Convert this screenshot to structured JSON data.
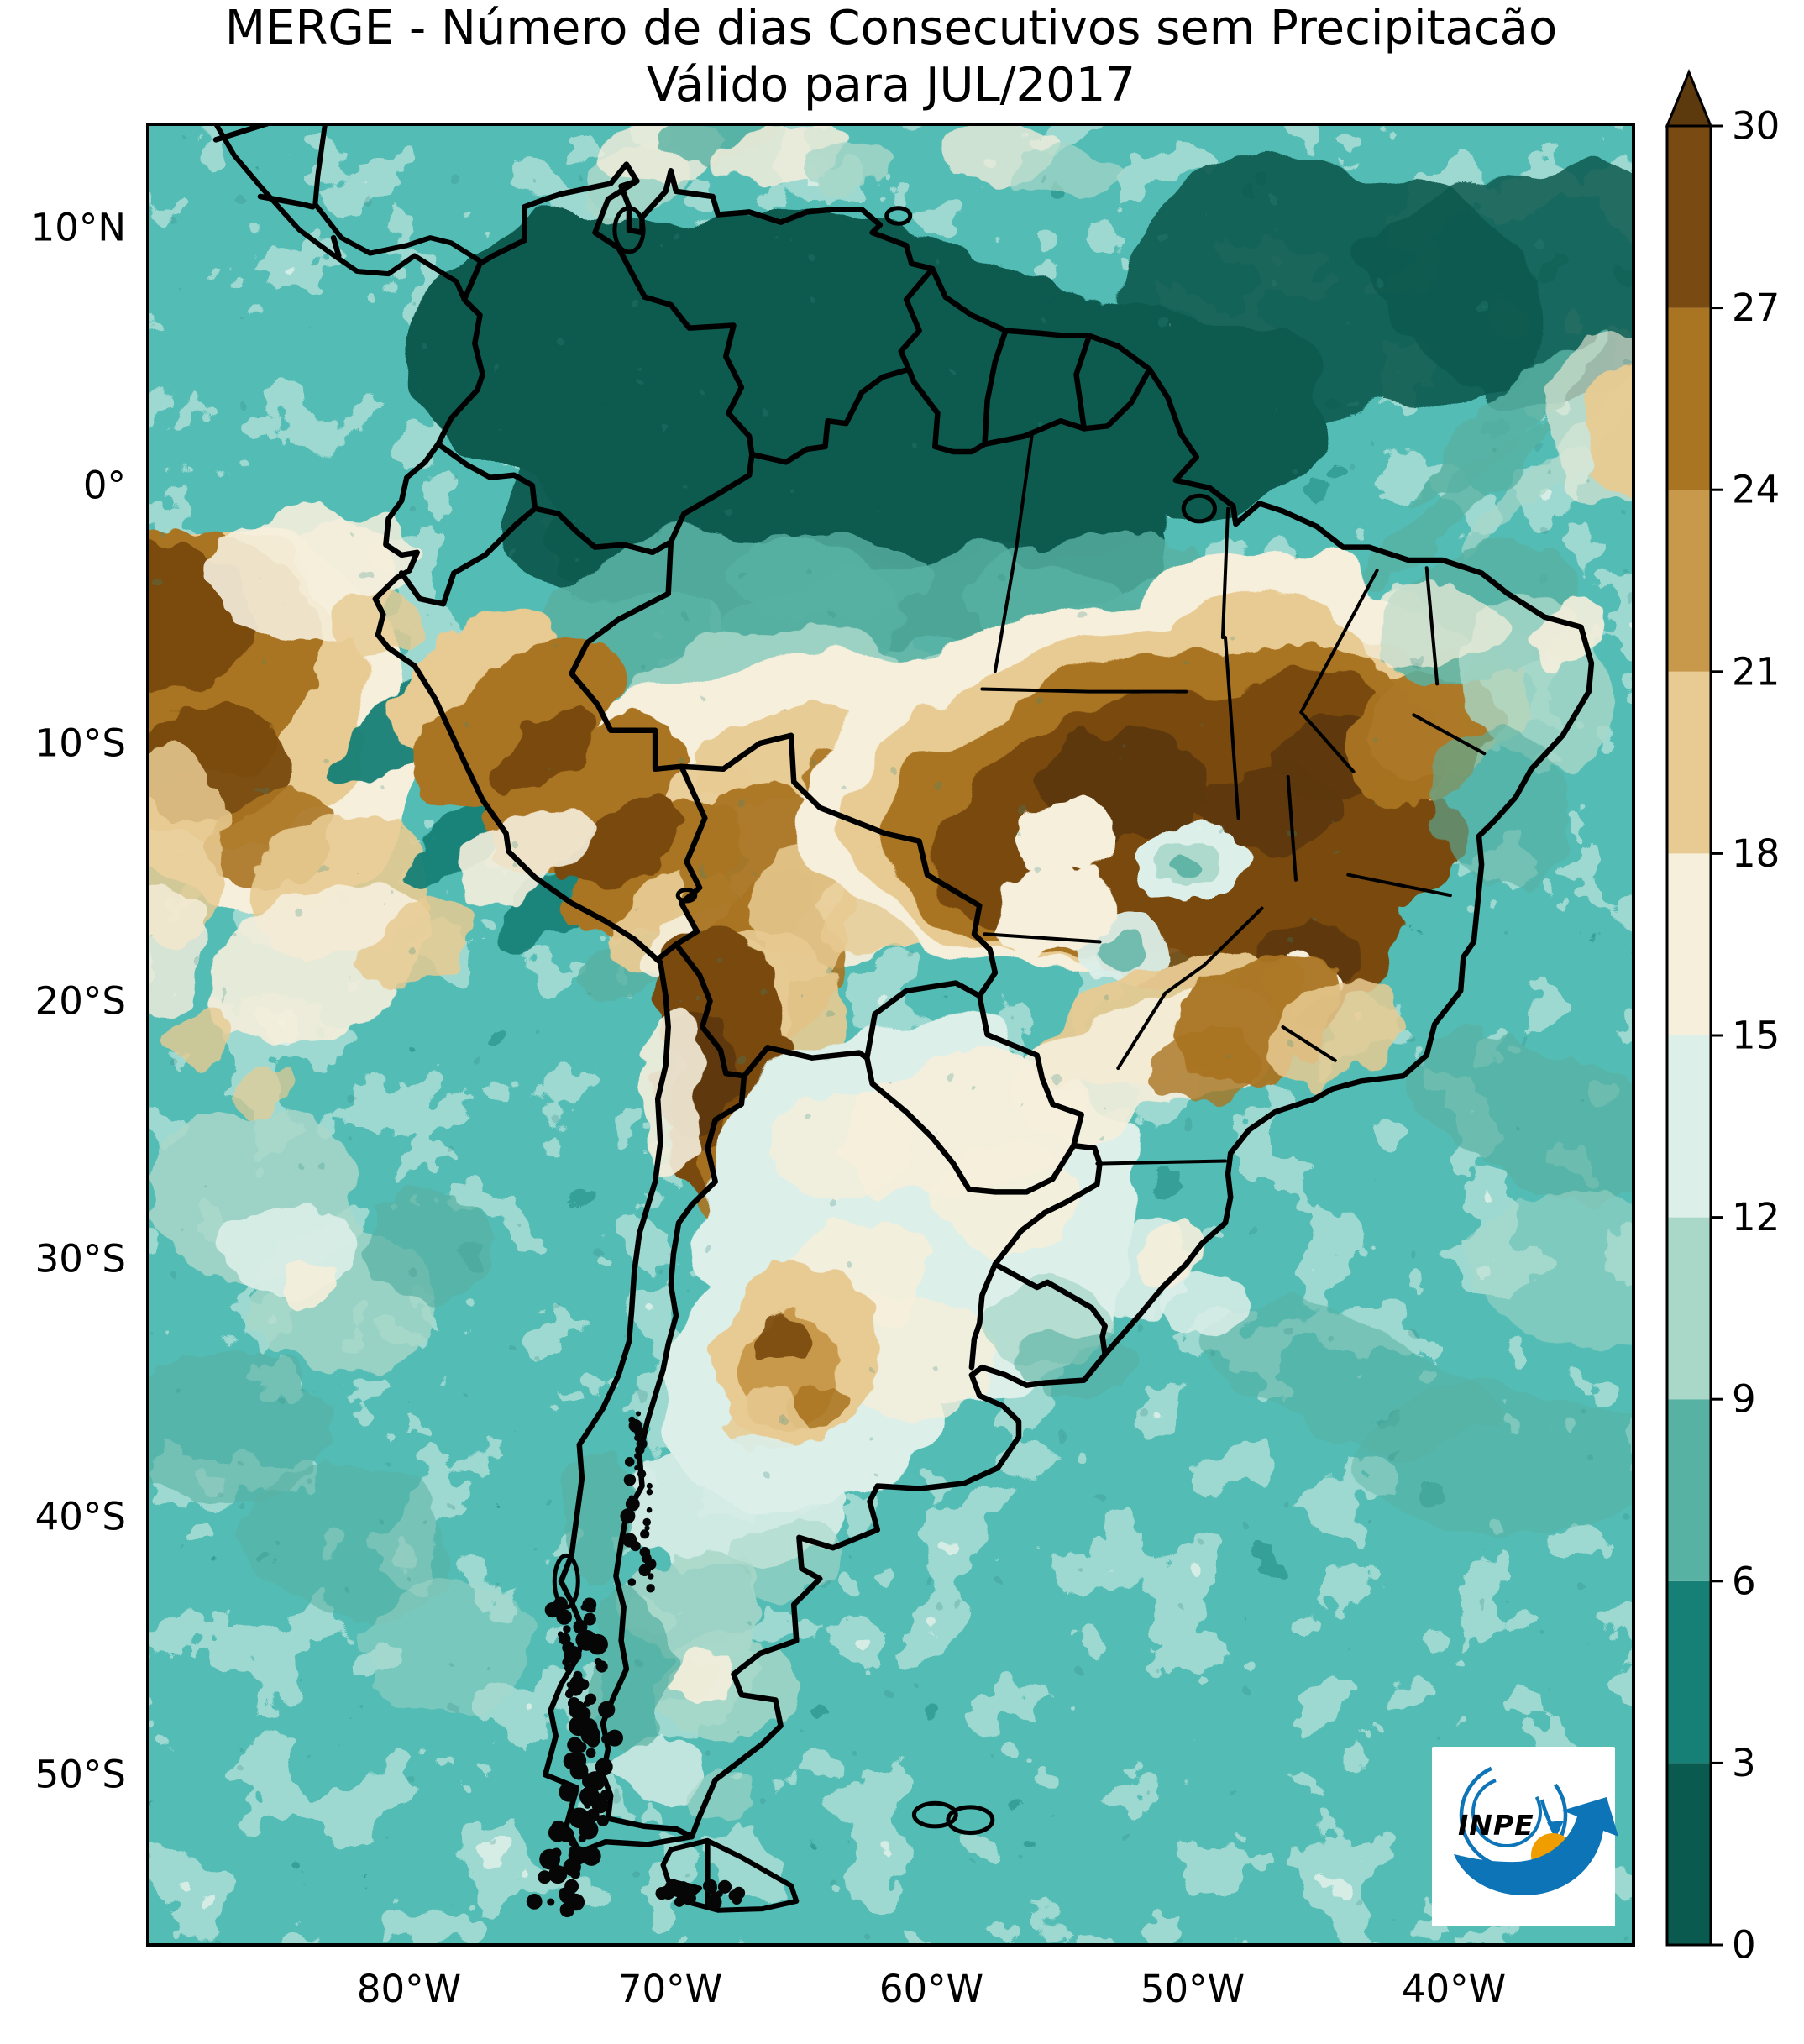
{
  "chart_data": {
    "type": "heatmap",
    "title": "MERGE - Número de dias Consecutivos sem Precipitacão",
    "subtitle": "Válido para JUL/2017",
    "product": "MERGE",
    "variable": "Número de dias consecutivos sem precipitação",
    "valid_for": "JUL/2017",
    "units": "dias",
    "xticks": [
      "80°W",
      "70°W",
      "60°W",
      "50°W",
      "40°W"
    ],
    "yticks": [
      "10°N",
      "0°",
      "10°S",
      "20°S",
      "30°S",
      "40°S",
      "50°S"
    ],
    "geo": {
      "projection": "PlateCarree",
      "region": "South America",
      "lon_range": [
        -89.9,
        -33.2
      ],
      "lat_range": [
        -56.6,
        14.1
      ]
    },
    "colorbar": {
      "orientation": "vertical",
      "position": "right",
      "extend": "max",
      "levels": [
        0,
        3,
        6,
        9,
        12,
        15,
        18,
        21,
        24,
        27,
        30
      ],
      "tick_labels": [
        "0",
        "3",
        "6",
        "9",
        "12",
        "15",
        "18",
        "21",
        "24",
        "27",
        "30"
      ],
      "colors": [
        "#0a5a50",
        "#178076",
        "#58b2a3",
        "#a9d8c9",
        "#dcefe9",
        "#f6efdc",
        "#e8cb92",
        "#c9994b",
        "#aa7523",
        "#794a11"
      ],
      "over_color": "#5d390e"
    },
    "regions": [
      {
        "area": "Central and eastern Brazil (Mato Grosso, Goiás, Tocantins, Bahia, Minas Gerais)",
        "consecutive_dry_days": "24 to 30+"
      },
      {
        "area": "Maranhão / Piauí interior (NE Brazil)",
        "consecutive_dry_days": "21 to 30+"
      },
      {
        "area": "Peruvian and Bolivian Andes and SW Amazonia (Acre, Rondônia)",
        "consecutive_dry_days": "15 to 30"
      },
      {
        "area": "Northern Chile and NW Argentina Andes",
        "consecutive_dry_days": "24 to 30+"
      },
      {
        "area": "Central-western Argentina (Cuyo, San Luis, La Pampa)",
        "consecutive_dry_days": "18 to 27"
      },
      {
        "area": "Paraguay, Chaco and central Argentina plains",
        "consecutive_dry_days": "12 to 18"
      },
      {
        "area": "Northern South America (Colombia, Venezuela, Guianas, northern Amazon)",
        "consecutive_dry_days": "0 to 9"
      },
      {
        "area": "Southern Brazil, Uruguay, Patagonia and most ocean areas",
        "consecutive_dry_days": "0 to 12"
      },
      {
        "area": "Subtropical Pacific Ocean west of Peru",
        "consecutive_dry_days": "15 to 30"
      }
    ]
  },
  "logo": {
    "text": "INPE"
  }
}
